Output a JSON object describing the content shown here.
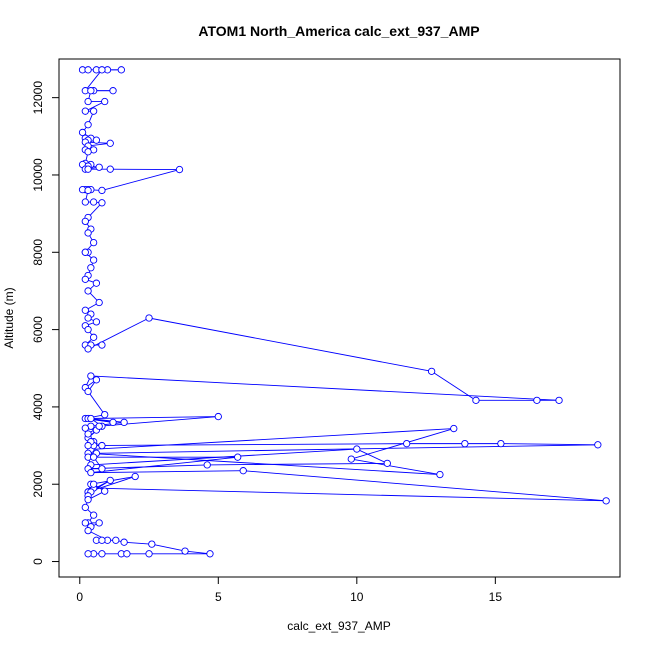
{
  "chart_data": {
    "type": "line",
    "title": "ATOM1 North_America calc_ext_937_AMP",
    "xlabel": "calc_ext_937_AMP",
    "ylabel": "Altitude (m)",
    "xlim": [
      -0.75,
      19.5
    ],
    "ylim": [
      -400,
      13000
    ],
    "xticks": [
      0,
      5,
      10,
      15
    ],
    "yticks": [
      0,
      2000,
      4000,
      6000,
      8000,
      10000,
      12000
    ],
    "series_color": "#0000ff",
    "marker": "open-circle",
    "grid": false,
    "x": [
      0.1,
      0.3,
      0.6,
      1.0,
      1.5,
      0.8,
      0.2,
      0.5,
      1.2,
      0.4,
      0.3,
      0.9,
      0.2,
      0.5,
      0.3,
      0.1,
      0.4,
      0.2,
      0.3,
      0.6,
      0.2,
      1.1,
      0.3,
      0.2,
      0.5,
      0.3,
      0.2,
      0.1,
      0.4,
      0.3,
      0.7,
      0.2,
      0.3,
      1.1,
      3.6,
      0.8,
      0.3,
      0.2,
      0.4,
      0.1,
      0.3,
      0.2,
      0.5,
      0.8,
      0.3,
      0.2,
      0.4,
      0.3,
      0.5,
      0.2,
      0.3,
      0.2,
      0.5,
      0.4,
      0.3,
      0.2,
      0.6,
      0.3,
      0.7,
      0.2,
      0.4,
      0.3,
      0.6,
      0.2,
      0.3,
      0.5,
      0.2,
      0.8,
      0.4,
      0.3,
      2.5,
      12.7,
      14.3,
      16.5,
      17.3,
      0.4,
      0.2,
      0.6,
      0.3,
      0.9,
      0.2,
      1.2,
      0.3,
      1.6,
      0.4,
      0.2,
      0.6,
      0.3,
      0.8,
      0.4,
      5.0,
      0.7,
      0.3,
      0.5,
      0.4,
      13.5,
      9.8,
      13.0,
      0.3,
      0.5,
      0.8,
      0.4,
      0.3,
      11.8,
      13.9,
      15.2,
      18.7,
      0.6,
      0.3,
      0.4,
      10.0,
      11.1,
      4.6,
      0.3,
      0.8,
      0.5,
      5.7,
      0.4,
      5.9,
      19.0,
      0.5,
      0.3,
      2.0,
      0.4,
      0.3,
      1.1,
      0.4,
      0.3,
      0.5,
      0.9,
      0.3,
      0.2,
      0.5,
      0.3,
      0.2,
      0.7,
      0.4,
      0.3,
      1.0,
      0.6,
      0.8,
      1.3,
      1.6,
      2.6,
      3.8,
      4.7,
      2.5,
      1.5,
      1.7,
      0.8,
      0.5,
      0.3
    ],
    "y": [
      12720,
      12720,
      12720,
      12720,
      12720,
      12720,
      12180,
      12180,
      12180,
      12180,
      11900,
      11900,
      11650,
      11650,
      11300,
      11100,
      10950,
      10950,
      10900,
      10900,
      10850,
      10820,
      10750,
      10650,
      10650,
      10600,
      10300,
      10270,
      10270,
      10230,
      10200,
      10150,
      10150,
      10150,
      10140,
      9600,
      9620,
      9620,
      9620,
      9620,
      9600,
      9300,
      9300,
      9280,
      8900,
      8800,
      8600,
      8500,
      8250,
      8000,
      8000,
      8000,
      7800,
      7600,
      7400,
      7300,
      7200,
      7000,
      6700,
      6500,
      6400,
      6300,
      6200,
      6100,
      6000,
      5800,
      5600,
      5600,
      5600,
      5500,
      6300,
      4920,
      4170,
      4170,
      4170,
      4800,
      4500,
      4700,
      4400,
      3800,
      3700,
      3600,
      3700,
      3600,
      3500,
      3450,
      3400,
      3200,
      3500,
      3700,
      3750,
      3500,
      3300,
      3100,
      2900,
      3440,
      2650,
      2250,
      2800,
      3000,
      3000,
      3100,
      3000,
      3050,
      3050,
      3050,
      3020,
      2800,
      2700,
      2500,
      2910,
      2540,
      2500,
      2400,
      2400,
      2700,
      2700,
      2300,
      2350,
      1570,
      1900,
      1800,
      2200,
      2000,
      1800,
      2100,
      1800,
      1700,
      2000,
      1820,
      1600,
      1400,
      1200,
      1000,
      1000,
      1000,
      900,
      800,
      550,
      550,
      550,
      550,
      500,
      450,
      270,
      200,
      200,
      200,
      200,
      200,
      200,
      200
    ]
  }
}
